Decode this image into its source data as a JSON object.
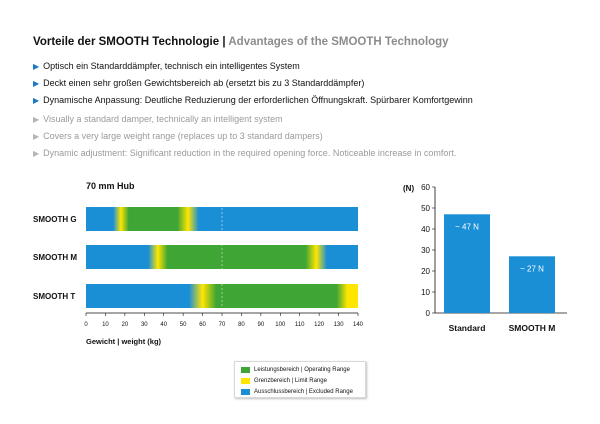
{
  "header": {
    "title_de": "Vorteile der SMOOTH Technologie",
    "separator": "|",
    "title_en": "Advantages of the SMOOTH Technology"
  },
  "bullets_de": [
    "Optisch ein Standarddämpfer, technisch ein intelligentes System",
    "Deckt einen sehr großen Gewichtsbereich ab (ersetzt bis zu 3 Standarddämpfer)",
    "Dynamische Anpassung: Deutliche Reduzierung der erforderlichen Öffnungskraft. Spürbarer Komfortgewinn"
  ],
  "bullets_en": [
    "Visually a standard damper, technically an intelligent system",
    "Covers a very large weight range (replaces up to 3 standard dampers)",
    "Dynamic adjustment: Significant reduction in the required opening force. Noticeable increase in comfort."
  ],
  "colors": {
    "operating": "#3fa535",
    "limit": "#ffe600",
    "excluded": "#1a8fd6",
    "accent": "#1b76c8"
  },
  "chart_data": [
    {
      "type": "bar",
      "orientation": "horizontal",
      "title": "70 mm Hub",
      "xlabel": "Gewicht | weight (kg)",
      "xlim": [
        0,
        140
      ],
      "xticks": [
        "0",
        "10",
        "20",
        "30",
        "40",
        "50",
        "60",
        "70",
        "80",
        "90",
        "100",
        "110",
        "120",
        "130",
        "140"
      ],
      "categories": [
        "SMOOTH G",
        "SMOOTH M",
        "SMOOTH T"
      ],
      "ranges": [
        {
          "name": "SMOOTH G",
          "operating": [
            22,
            47
          ],
          "limit_low": [
            14,
            22
          ],
          "limit_high": [
            47,
            58
          ]
        },
        {
          "name": "SMOOTH M",
          "operating": [
            42,
            113
          ],
          "limit_low": [
            32,
            42
          ],
          "limit_high": [
            113,
            124
          ]
        },
        {
          "name": "SMOOTH T",
          "operating": [
            67,
            129
          ],
          "limit_low": [
            53,
            67
          ],
          "limit_high": [
            129,
            140
          ]
        }
      ],
      "legend": [
        {
          "key": "operating",
          "label": "Leistungsbereich | Operating Range"
        },
        {
          "key": "limit",
          "label": "Grenzbereich | Limit Range"
        },
        {
          "key": "excluded",
          "label": "Ausschlussbereich | Excluded Range"
        }
      ]
    },
    {
      "type": "bar",
      "ylabel": "(N)",
      "ylim": [
        0,
        60
      ],
      "yticks": [
        "0",
        "10",
        "20",
        "30",
        "40",
        "50",
        "60"
      ],
      "categories": [
        "Standard",
        "SMOOTH M"
      ],
      "values": [
        47,
        27
      ],
      "data_labels": [
        "~ 47 N",
        "~ 27 N"
      ]
    }
  ]
}
